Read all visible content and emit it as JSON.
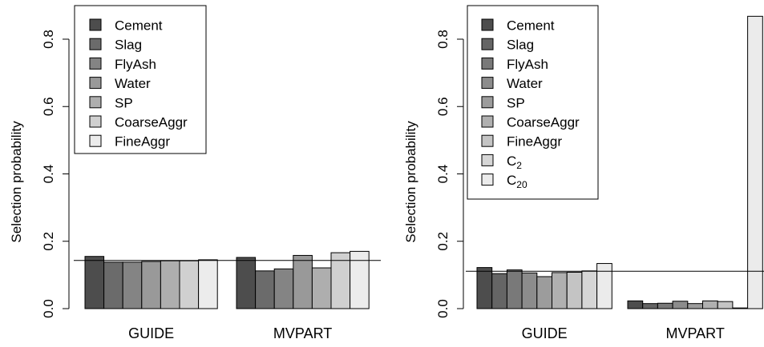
{
  "chart_data": [
    {
      "type": "bar",
      "ylabel": "Selection probability",
      "ylim": [
        0,
        0.9
      ],
      "yticks": [
        "0.0",
        "0.2",
        "0.4",
        "0.6",
        "0.8"
      ],
      "groups": [
        "GUIDE",
        "MVPART"
      ],
      "reference_line": 0.1429,
      "legend_position": "top-left",
      "series": [
        {
          "name": "Cement",
          "color": "#4d4d4d",
          "values": [
            0.155,
            0.152
          ]
        },
        {
          "name": "Slag",
          "color": "#6b6b6b",
          "values": [
            0.138,
            0.112
          ]
        },
        {
          "name": "FlyAsh",
          "color": "#848484",
          "values": [
            0.138,
            0.118
          ]
        },
        {
          "name": "Water",
          "color": "#999999",
          "values": [
            0.14,
            0.158
          ]
        },
        {
          "name": "SP",
          "color": "#aeaeae",
          "values": [
            0.142,
            0.121
          ]
        },
        {
          "name": "CoarseAggr",
          "color": "#d0d0d0",
          "values": [
            0.142,
            0.166
          ]
        },
        {
          "name": "FineAggr",
          "color": "#ececec",
          "values": [
            0.145,
            0.17
          ]
        }
      ]
    },
    {
      "type": "bar",
      "ylabel": "Selection probability",
      "ylim": [
        0,
        0.9
      ],
      "yticks": [
        "0.0",
        "0.2",
        "0.4",
        "0.6",
        "0.8"
      ],
      "groups": [
        "GUIDE",
        "MVPART"
      ],
      "reference_line": 0.1111,
      "legend_position": "top-left",
      "series": [
        {
          "name": "Cement",
          "label_main": "Cement",
          "color": "#4d4d4d",
          "values": [
            0.122,
            0.023
          ]
        },
        {
          "name": "Slag",
          "label_main": "Slag",
          "color": "#656565",
          "values": [
            0.104,
            0.015
          ]
        },
        {
          "name": "FlyAsh",
          "label_main": "FlyAsh",
          "color": "#797979",
          "values": [
            0.115,
            0.016
          ]
        },
        {
          "name": "Water",
          "label_main": "Water",
          "color": "#8c8c8c",
          "values": [
            0.106,
            0.022
          ]
        },
        {
          "name": "SP",
          "label_main": "SP",
          "color": "#9c9c9c",
          "values": [
            0.095,
            0.015
          ]
        },
        {
          "name": "CoarseAggr",
          "label_main": "CoarseAggr",
          "color": "#b0b0b0",
          "values": [
            0.107,
            0.023
          ]
        },
        {
          "name": "FineAggr",
          "label_main": "FineAggr",
          "color": "#c4c4c4",
          "values": [
            0.108,
            0.021
          ]
        },
        {
          "name": "C2",
          "label_main": "C",
          "label_sub": "2",
          "color": "#d6d6d6",
          "values": [
            0.112,
            0.002
          ]
        },
        {
          "name": "C20",
          "label_main": "C",
          "label_sub": "20",
          "color": "#ebebeb",
          "values": [
            0.134,
            0.868
          ]
        }
      ]
    }
  ]
}
